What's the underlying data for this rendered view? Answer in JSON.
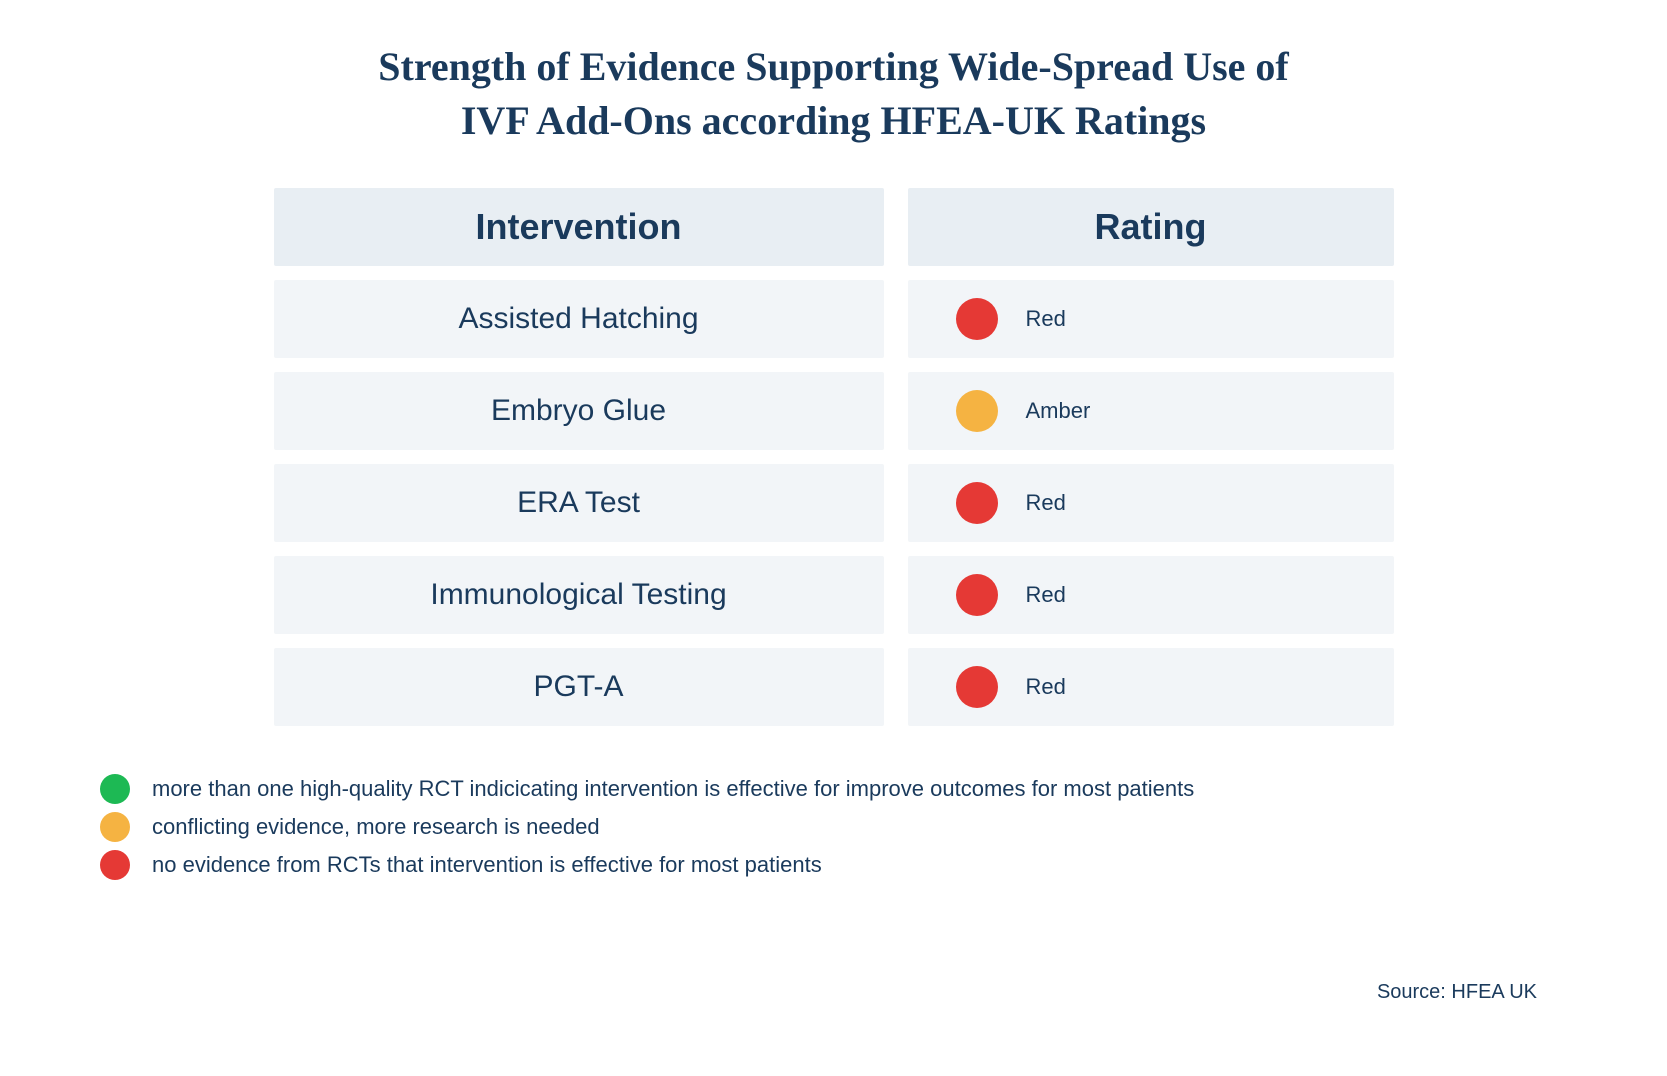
{
  "title_line1": "Strength of Evidence Supporting Wide-Spread Use of",
  "title_line2": "IVF Add-Ons according HFEA-UK Ratings",
  "title_fontsize": 40,
  "title_color": "#1a3a5c",
  "columns": {
    "intervention": "Intervention",
    "rating": "Rating"
  },
  "header_fontsize": 36,
  "header_bg": "#e8eef3",
  "row_bg": "#f2f5f8",
  "row_fontsize": 30,
  "text_color": "#1a3a5c",
  "dot_size_table": 42,
  "rating_label_fontsize": 22,
  "rows": [
    {
      "intervention": "Assisted Hatching",
      "rating": "Red",
      "color": "#e53935"
    },
    {
      "intervention": "Embryo Glue",
      "rating": "Amber",
      "color": "#f5b342"
    },
    {
      "intervention": "ERA Test",
      "rating": "Red",
      "color": "#e53935"
    },
    {
      "intervention": "Immunological Testing",
      "rating": "Red",
      "color": "#e53935"
    },
    {
      "intervention": "PGT-A",
      "rating": "Red",
      "color": "#e53935"
    }
  ],
  "legend": {
    "dot_size": 30,
    "fontsize": 22,
    "items": [
      {
        "color": "#1db954",
        "text": "more than one high-quality RCT indicicating intervention is effective for improve outcomes for most patients"
      },
      {
        "color": "#f5b342",
        "text": "conflicting evidence, more research is needed"
      },
      {
        "color": "#e53935",
        "text": "no evidence from RCTs that intervention is effective for most patients"
      }
    ]
  },
  "source": "Source: HFEA UK",
  "source_fontsize": 20
}
